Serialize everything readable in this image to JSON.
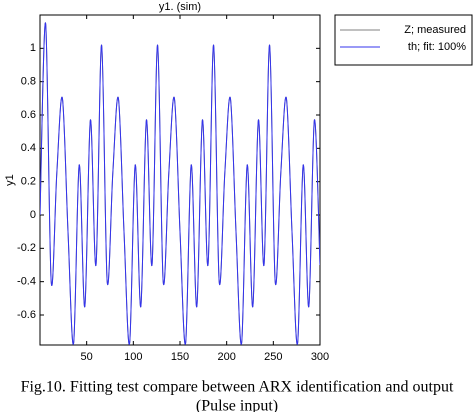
{
  "chart_data": {
    "type": "line",
    "title": "y1. (sim)",
    "ylabel": "y1",
    "x": [
      0,
      6,
      12,
      18,
      24,
      30,
      36,
      42,
      48,
      54,
      60,
      66,
      72,
      78,
      84,
      90,
      96,
      102,
      108,
      114,
      120,
      126,
      132,
      138,
      144,
      150,
      156,
      162,
      168,
      174,
      180,
      186,
      192,
      198,
      204,
      210,
      216,
      222,
      228,
      234,
      240,
      246,
      252,
      258,
      264,
      270,
      276,
      282,
      288,
      294,
      300
    ],
    "series": [
      {
        "name": "Z; measured",
        "color": "#808080",
        "values": [
          0,
          1.15,
          -0.4,
          0.25,
          0.7,
          -0.1,
          -0.77,
          0.3,
          -0.55,
          0.57,
          -0.3,
          1.02,
          -0.4,
          0.25,
          0.7,
          -0.1,
          -0.77,
          0.3,
          -0.55,
          0.57,
          -0.3,
          1.02,
          -0.4,
          0.25,
          0.7,
          -0.1,
          -0.77,
          0.3,
          -0.55,
          0.57,
          -0.3,
          1.02,
          -0.4,
          0.25,
          0.7,
          -0.1,
          -0.77,
          0.3,
          -0.55,
          0.57,
          -0.3,
          1.02,
          -0.4,
          0.25,
          0.7,
          -0.1,
          -0.77,
          0.3,
          -0.55,
          0.57,
          -0.3
        ]
      },
      {
        "name": "th; fit: 100%",
        "color": "#3333ee",
        "values": [
          0,
          1.15,
          -0.4,
          0.25,
          0.7,
          -0.1,
          -0.77,
          0.3,
          -0.55,
          0.57,
          -0.3,
          1.02,
          -0.4,
          0.25,
          0.7,
          -0.1,
          -0.77,
          0.3,
          -0.55,
          0.57,
          -0.3,
          1.02,
          -0.4,
          0.25,
          0.7,
          -0.1,
          -0.77,
          0.3,
          -0.55,
          0.57,
          -0.3,
          1.02,
          -0.4,
          0.25,
          0.7,
          -0.1,
          -0.77,
          0.3,
          -0.55,
          0.57,
          -0.3,
          1.02,
          -0.4,
          0.25,
          0.7,
          -0.1,
          -0.77,
          0.3,
          -0.55,
          0.57,
          -0.3
        ]
      }
    ],
    "xlim": [
      0,
      300
    ],
    "xticks": [
      50,
      100,
      150,
      200,
      250,
      300
    ],
    "ylim": [
      -0.78,
      1.2
    ],
    "yticks": [
      -0.6,
      -0.4,
      -0.2,
      0,
      0.2,
      0.4,
      0.6,
      0.8,
      1
    ],
    "legend": "outside-top-right",
    "grid": false
  },
  "caption": [
    "Fig.10. Fitting test compare between ARX identification and output",
    "(Pulse input)"
  ]
}
